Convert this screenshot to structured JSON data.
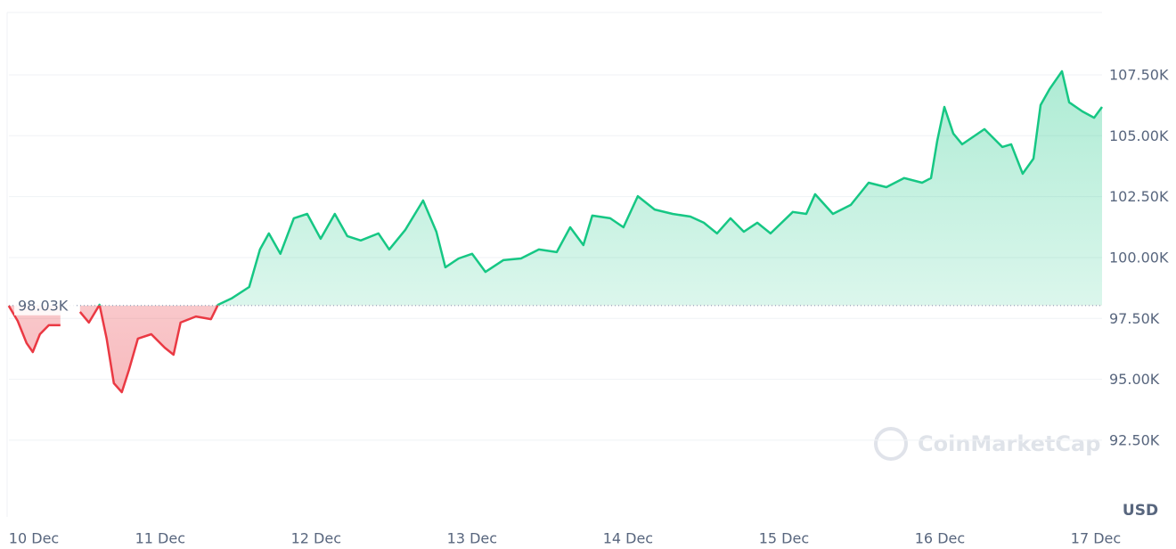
{
  "chart_data": {
    "type": "line",
    "x": [
      10.029,
      10.086,
      10.143,
      10.183,
      10.229,
      10.286,
      10.36,
      10.417,
      10.486,
      10.543,
      10.611,
      10.657,
      10.703,
      10.754,
      10.8,
      10.857,
      10.943,
      11.029,
      11.086,
      11.131,
      11.229,
      11.326,
      11.371,
      11.457,
      11.571,
      11.64,
      11.697,
      11.771,
      11.857,
      11.943,
      12.029,
      12.12,
      12.2,
      12.286,
      12.4,
      12.469,
      12.571,
      12.686,
      12.771,
      12.829,
      12.914,
      13,
      13.086,
      13.2,
      13.314,
      13.429,
      13.543,
      13.629,
      13.714,
      13.771,
      13.886,
      13.971,
      14.063,
      14.171,
      14.286,
      14.4,
      14.486,
      14.571,
      14.657,
      14.743,
      14.829,
      14.914,
      15.057,
      15.143,
      15.2,
      15.314,
      15.429,
      15.543,
      15.657,
      15.771,
      15.886,
      15.943,
      15.983,
      16.029,
      16.086,
      16.143,
      16.286,
      16.4,
      16.457,
      16.531,
      16.6,
      16.646,
      16.703,
      16.783,
      16.829,
      16.914,
      16.989,
      17.04
    ],
    "values": [
      98020,
      97400,
      96490,
      96120,
      96850,
      97220,
      97220,
      null,
      97770,
      97330,
      98060,
      96670,
      94840,
      94470,
      95390,
      96670,
      96850,
      96300,
      96010,
      97330,
      97580,
      97470,
      98060,
      98320,
      98790,
      100330,
      100990,
      100150,
      101610,
      101790,
      100770,
      101790,
      100880,
      100700,
      100990,
      100330,
      101130,
      102340,
      101060,
      99600,
      99960,
      100150,
      99410,
      99890,
      99960,
      100330,
      100220,
      101240,
      100510,
      101720,
      101610,
      101240,
      102520,
      101970,
      101790,
      101680,
      101430,
      100990,
      101610,
      101060,
      101430,
      100990,
      101870,
      101790,
      102600,
      101790,
      102160,
      103070,
      102890,
      103260,
      103070,
      103260,
      104790,
      106180,
      105090,
      104650,
      105270,
      104540,
      104650,
      103440,
      104060,
      106260,
      106910,
      107650,
      106370,
      106000,
      105740,
      106180
    ],
    "baseline": {
      "value": 98030,
      "label": "98.03K"
    },
    "up_color": "#16c784",
    "down_color": "#ea3943",
    "xlim": [
      10.03,
      17.04
    ],
    "xticks": [
      {
        "value": 10,
        "label": "10 Dec"
      },
      {
        "value": 11,
        "label": "11 Dec"
      },
      {
        "value": 12,
        "label": "12 Dec"
      },
      {
        "value": 13,
        "label": "13 Dec"
      },
      {
        "value": 14,
        "label": "14 Dec"
      },
      {
        "value": 15,
        "label": "15 Dec"
      },
      {
        "value": 16,
        "label": "16 Dec"
      },
      {
        "value": 17,
        "label": "17 Dec"
      }
    ],
    "ylim": [
      89350,
      110060
    ],
    "yticks": [
      {
        "value": 92500,
        "label": "92.50K"
      },
      {
        "value": 95000,
        "label": "95.00K"
      },
      {
        "value": 97500,
        "label": "97.50K"
      },
      {
        "value": 100000,
        "label": "100.00K"
      },
      {
        "value": 102500,
        "label": "102.50K"
      },
      {
        "value": 105000,
        "label": "105.00K"
      },
      {
        "value": 107500,
        "label": "107.50K"
      }
    ],
    "y_unit": "USD",
    "watermark": "CoinMarketCap",
    "grid": true
  }
}
